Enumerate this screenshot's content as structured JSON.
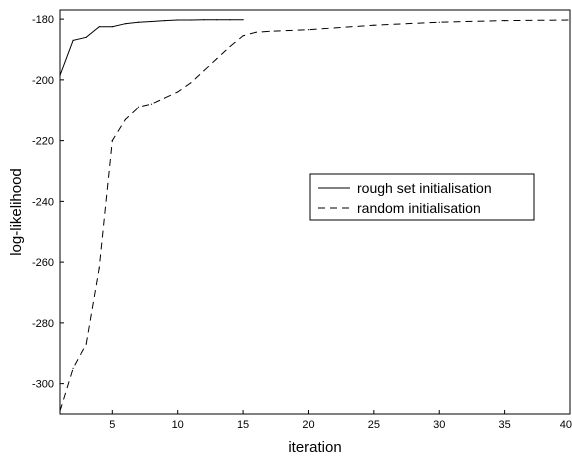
{
  "chart_data": {
    "type": "line",
    "title": "",
    "xlabel": "iteration",
    "ylabel": "log-likelihood",
    "xlim": [
      1,
      40
    ],
    "ylim": [
      -310,
      -177
    ],
    "xticks": [
      {
        "value": 5,
        "label": "5"
      },
      {
        "value": 10,
        "label": "10"
      },
      {
        "value": 15,
        "label": "15"
      },
      {
        "value": 20,
        "label": "20"
      },
      {
        "value": 25,
        "label": "25"
      },
      {
        "value": 30,
        "label": "30"
      },
      {
        "value": 35,
        "label": "35"
      },
      {
        "value": 40,
        "label": "40"
      }
    ],
    "yticks": [
      {
        "value": -180,
        "label": "-180"
      },
      {
        "value": -200,
        "label": "-200"
      },
      {
        "value": -220,
        "label": "-220"
      },
      {
        "value": -240,
        "label": "-240"
      },
      {
        "value": -260,
        "label": "-260"
      },
      {
        "value": -280,
        "label": "-280"
      },
      {
        "value": -300,
        "label": "-300"
      }
    ],
    "grid": false,
    "legend_position": "center-right",
    "series": [
      {
        "name": "rough set initialisation",
        "style": "solid",
        "color": "#000000",
        "x": [
          1,
          2,
          3,
          4,
          5,
          6,
          7,
          8,
          9,
          10,
          11,
          12,
          13,
          14,
          15
        ],
        "y": [
          -198.5,
          -187,
          -186,
          -182.5,
          -182.5,
          -181.5,
          -181,
          -180.8,
          -180.5,
          -180.3,
          -180.3,
          -180.2,
          -180.2,
          -180.2,
          -180.2
        ]
      },
      {
        "name": "random initialisation",
        "style": "dashed",
        "color": "#000000",
        "x": [
          1,
          2,
          3,
          4,
          5,
          6,
          7,
          8,
          9,
          10,
          11,
          12,
          13,
          14,
          15,
          16,
          17,
          20,
          25,
          30,
          35,
          40
        ],
        "y": [
          -309,
          -295,
          -287,
          -262,
          -220,
          -213,
          -209,
          -208,
          -206,
          -204,
          -201,
          -197,
          -193,
          -189,
          -185.5,
          -184.3,
          -184,
          -183.5,
          -182,
          -181,
          -180.5,
          -180.3
        ]
      }
    ]
  }
}
